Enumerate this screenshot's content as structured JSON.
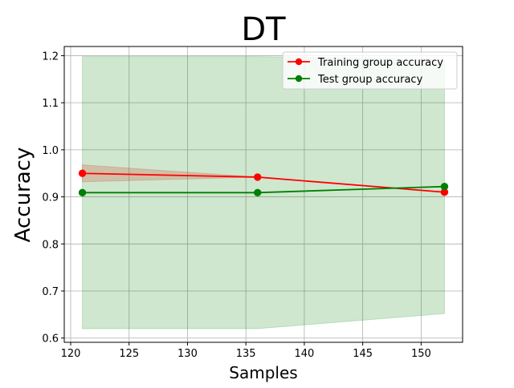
{
  "chart_data": {
    "type": "line",
    "title": "DT",
    "xlabel": "Samples",
    "ylabel": "Accuracy",
    "xlim": [
      119.45,
      153.55
    ],
    "ylim": [
      0.591,
      1.2195
    ],
    "xticks": [
      120,
      125,
      130,
      135,
      140,
      145,
      150
    ],
    "yticks": [
      0.6,
      0.7,
      0.8,
      0.9,
      1.0,
      1.1,
      1.2
    ],
    "xtick_labels": [
      "120",
      "125",
      "130",
      "135",
      "140",
      "145",
      "150"
    ],
    "ytick_labels": [
      "0.6",
      "0.7",
      "0.8",
      "0.9",
      "1.0",
      "1.1",
      "1.2"
    ],
    "grid": true,
    "legend_position": "top-right",
    "x": [
      121,
      136,
      152
    ],
    "series": [
      {
        "name": "Training group accuracy",
        "color": "#ff0000",
        "marker": "circle",
        "values": [
          0.95,
          0.942,
          0.91
        ],
        "band_lower": [
          0.932,
          0.942,
          0.91
        ],
        "band_upper": [
          0.968,
          0.942,
          0.91
        ],
        "band_color": "#ff0000"
      },
      {
        "name": "Test group accuracy",
        "color": "#008000",
        "marker": "circle",
        "values": [
          0.909,
          0.909,
          0.922
        ],
        "band_lower": [
          0.62,
          0.62,
          0.652
        ],
        "band_upper": [
          1.198,
          1.198,
          1.192
        ],
        "band_color": "#008000"
      }
    ]
  }
}
